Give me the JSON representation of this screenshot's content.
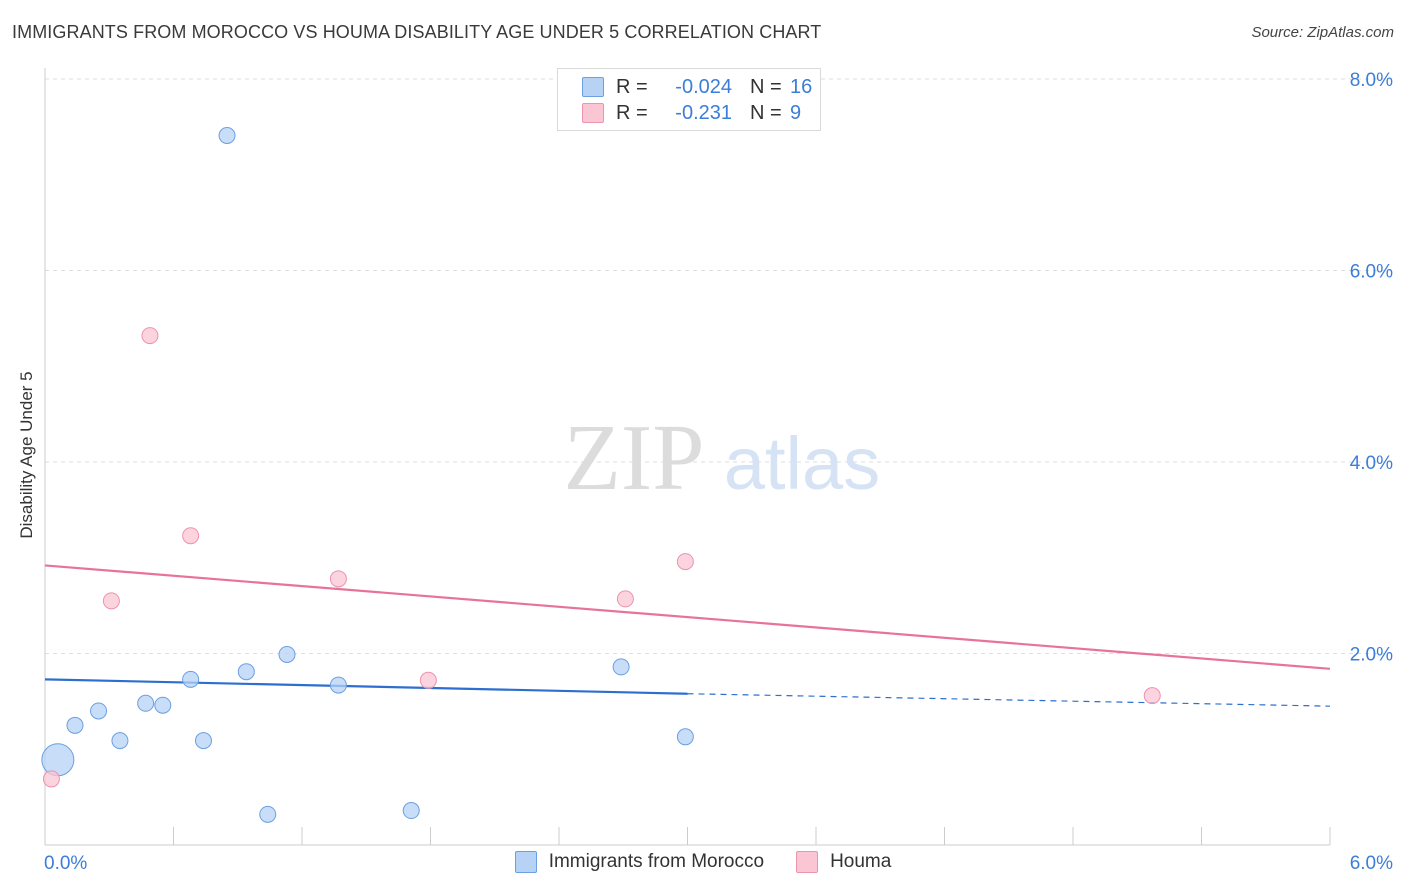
{
  "title": "IMMIGRANTS FROM MOROCCO VS HOUMA DISABILITY AGE UNDER 5 CORRELATION CHART",
  "source": "Source: ZipAtlas.com",
  "watermark": {
    "zip": "ZIP",
    "atlas": "atlas"
  },
  "legend_top": {
    "rows": [
      {
        "r_label": "R =",
        "r_value": "-0.024",
        "n_label": "N =",
        "n_value": "16"
      },
      {
        "r_label": "R =",
        "r_value": "-0.231",
        "n_label": "N =",
        "n_value": "9"
      }
    ]
  },
  "chart_data": {
    "type": "scatter",
    "title": "IMMIGRANTS FROM MOROCCO VS HOUMA DISABILITY AGE UNDER 5 CORRELATION CHART",
    "xlabel": "",
    "ylabel": "Disability Age Under 5",
    "xlim": [
      0,
      6
    ],
    "ylim": [
      0,
      8
    ],
    "x_tick_labels": [
      "0.0%",
      "6.0%"
    ],
    "y_ticks": [
      2,
      4,
      6,
      8
    ],
    "y_tick_labels": [
      "2.0%",
      "4.0%",
      "6.0%",
      "8.0%"
    ],
    "grid": true,
    "legend": "bottom-center",
    "series": [
      {
        "name": "Immigrants from Morocco",
        "color": "#b6d2f5",
        "edge_color": "#6b9fe0",
        "line_color": "#2d6fcf",
        "r": "-0.024",
        "n": "16",
        "points": [
          {
            "x": 0.06,
            "y": 0.89,
            "size": "large"
          },
          {
            "x": 0.14,
            "y": 1.25
          },
          {
            "x": 0.25,
            "y": 1.4
          },
          {
            "x": 0.35,
            "y": 1.09
          },
          {
            "x": 0.47,
            "y": 1.48
          },
          {
            "x": 0.55,
            "y": 1.46
          },
          {
            "x": 0.68,
            "y": 1.73
          },
          {
            "x": 0.74,
            "y": 1.09
          },
          {
            "x": 0.85,
            "y": 7.41
          },
          {
            "x": 0.94,
            "y": 1.81
          },
          {
            "x": 1.04,
            "y": 0.32
          },
          {
            "x": 1.13,
            "y": 1.99
          },
          {
            "x": 1.37,
            "y": 1.67
          },
          {
            "x": 1.71,
            "y": 0.36
          },
          {
            "x": 2.69,
            "y": 1.86
          },
          {
            "x": 2.99,
            "y": 1.13
          }
        ],
        "trend": {
          "x0": 0.0,
          "y0": 1.73,
          "x1": 3.0,
          "y1": 1.58,
          "dash_x1": 6.0,
          "dash_y1": 1.45
        }
      },
      {
        "name": "Houma",
        "color": "#fac6d4",
        "edge_color": "#ec93ad",
        "line_color": "#e8739a",
        "r": "-0.231",
        "n": "9",
        "points": [
          {
            "x": 0.03,
            "y": 0.69
          },
          {
            "x": 0.31,
            "y": 2.55
          },
          {
            "x": 0.49,
            "y": 5.32
          },
          {
            "x": 0.68,
            "y": 3.23
          },
          {
            "x": 1.37,
            "y": 2.78
          },
          {
            "x": 1.79,
            "y": 1.72
          },
          {
            "x": 2.71,
            "y": 2.57
          },
          {
            "x": 2.99,
            "y": 2.96
          },
          {
            "x": 5.17,
            "y": 1.56
          }
        ],
        "trend": {
          "x0": 0.0,
          "y0": 2.92,
          "x1": 6.0,
          "y1": 1.84
        }
      }
    ]
  }
}
